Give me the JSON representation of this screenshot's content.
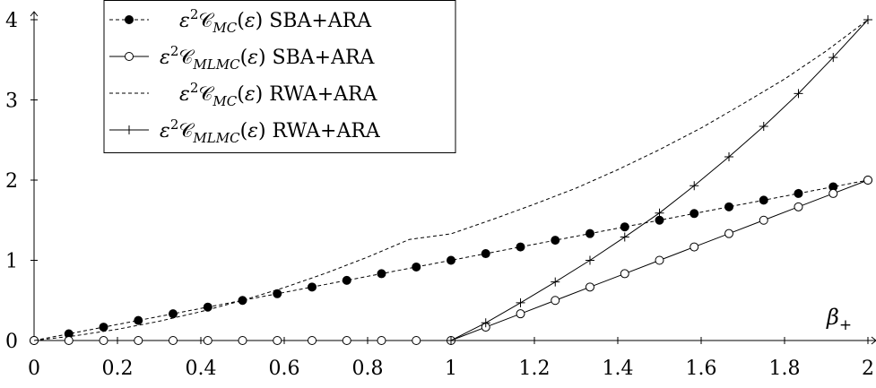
{
  "chart_data": {
    "type": "line",
    "xlabel": "β+",
    "ylabel": "",
    "xlim": [
      0,
      2
    ],
    "ylim": [
      0,
      4
    ],
    "xticks": [
      "0",
      "0.2",
      "0.4",
      "0.6",
      "0.8",
      "1",
      "1.2",
      "1.4",
      "1.6",
      "1.8",
      "2"
    ],
    "yticks": [
      "0",
      "1",
      "2",
      "3",
      "4"
    ],
    "grid": false,
    "legend_position": "top-left",
    "series": [
      {
        "name": "ε²C_MC(ε) SBA+ARA",
        "style": "dashed",
        "marker": "filled-circle",
        "x": [
          0,
          0.0833,
          0.1667,
          0.25,
          0.3333,
          0.4167,
          0.5,
          0.5833,
          0.6667,
          0.75,
          0.8333,
          0.9167,
          1,
          1.0833,
          1.1667,
          1.25,
          1.3333,
          1.4167,
          1.5,
          1.5833,
          1.6667,
          1.75,
          1.8333,
          1.9167,
          2
        ],
        "y": [
          0,
          0.0833,
          0.1667,
          0.25,
          0.3333,
          0.4167,
          0.5,
          0.5833,
          0.6667,
          0.75,
          0.8333,
          0.9167,
          1,
          1.0833,
          1.1667,
          1.25,
          1.3333,
          1.4167,
          1.5,
          1.5833,
          1.6667,
          1.75,
          1.8333,
          1.9167,
          2
        ]
      },
      {
        "name": "ε²C_MLMC(ε) SBA+ARA",
        "style": "solid",
        "marker": "open-circle",
        "x": [
          0,
          0.0833,
          0.1667,
          0.25,
          0.3333,
          0.4167,
          0.5,
          0.5833,
          0.6667,
          0.75,
          0.8333,
          0.9167,
          1,
          1.0833,
          1.1667,
          1.25,
          1.3333,
          1.4167,
          1.5,
          1.5833,
          1.6667,
          1.75,
          1.8333,
          1.9167,
          2
        ],
        "y": [
          0,
          0,
          0,
          0,
          0,
          0,
          0,
          0,
          0,
          0,
          0,
          0,
          0,
          0.1667,
          0.3333,
          0.5,
          0.6667,
          0.8333,
          1,
          1.1667,
          1.3333,
          1.5,
          1.6667,
          1.8333,
          2
        ]
      },
      {
        "name": "ε²C_MC(ε) RWA+ARA",
        "style": "dashed",
        "marker": "none",
        "x": [
          0,
          0.1,
          0.2,
          0.3,
          0.4,
          0.5,
          0.6,
          0.7,
          0.8,
          0.9,
          1,
          1.1,
          1.2,
          1.3,
          1.4,
          1.5,
          1.6,
          1.7,
          1.8,
          1.9,
          2
        ],
        "y": [
          0,
          0.06,
          0.14,
          0.24,
          0.36,
          0.5,
          0.66,
          0.84,
          1.04,
          1.26,
          1.33,
          1.51,
          1.7,
          1.9,
          2.13,
          2.38,
          2.65,
          2.95,
          3.26,
          3.61,
          4
        ]
      },
      {
        "name": "ε²C_MLMC(ε) RWA+ARA",
        "style": "solid",
        "marker": "plus",
        "x": [
          1,
          1.0833,
          1.1667,
          1.25,
          1.3333,
          1.4167,
          1.5,
          1.5833,
          1.6667,
          1.75,
          1.8333,
          1.9167,
          2
        ],
        "y": [
          0,
          0.22,
          0.47,
          0.73,
          1,
          1.29,
          1.59,
          1.93,
          2.29,
          2.67,
          3.08,
          3.53,
          4
        ]
      }
    ]
  }
}
